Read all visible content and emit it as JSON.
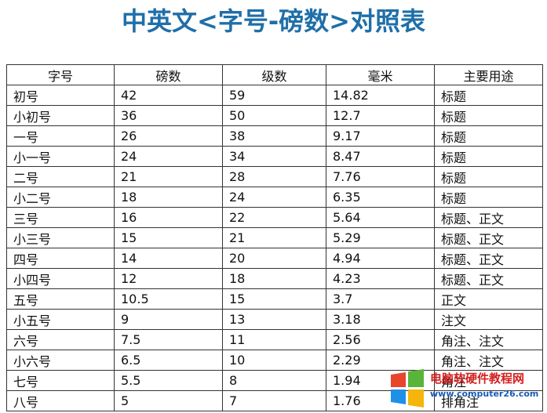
{
  "header": {
    "title": "中英文<字号-磅数>对照表"
  },
  "table": {
    "columns": [
      "字号",
      "磅数",
      "级数",
      "毫米",
      "主要用途"
    ],
    "rows": [
      [
        "初号",
        "42",
        "59",
        "14.82",
        "标题"
      ],
      [
        "小初号",
        "36",
        "50",
        "12.7",
        "标题"
      ],
      [
        "一号",
        "26",
        "38",
        "9.17",
        "标题"
      ],
      [
        "小一号",
        "24",
        "34",
        "8.47",
        "标题"
      ],
      [
        "二号",
        "21",
        "28",
        "7.76",
        "标题"
      ],
      [
        "小二号",
        "18",
        "24",
        "6.35",
        "标题"
      ],
      [
        "三号",
        "16",
        "22",
        "5.64",
        "标题、正文"
      ],
      [
        "小三号",
        "15",
        "21",
        "5.29",
        "标题、正文"
      ],
      [
        "四号",
        "14",
        "20",
        "4.94",
        "标题、正文"
      ],
      [
        "小四号",
        "12",
        "18",
        "4.23",
        "标题、正文"
      ],
      [
        "五号",
        "10.5",
        "15",
        "3.7",
        "正文"
      ],
      [
        "小五号",
        "9",
        "13",
        "3.18",
        "注文"
      ],
      [
        "六号",
        "7.5",
        "11",
        "2.56",
        "角注、注文"
      ],
      [
        "小六号",
        "6.5",
        "10",
        "2.29",
        "角注、注文"
      ],
      [
        "七号",
        "5.5",
        "8",
        "1.94",
        "角注"
      ],
      [
        "八号",
        "5",
        "7",
        "1.76",
        "排角注"
      ]
    ]
  },
  "watermark": {
    "name": "电脑软硬件教程网",
    "url": "www.computer26.com"
  }
}
